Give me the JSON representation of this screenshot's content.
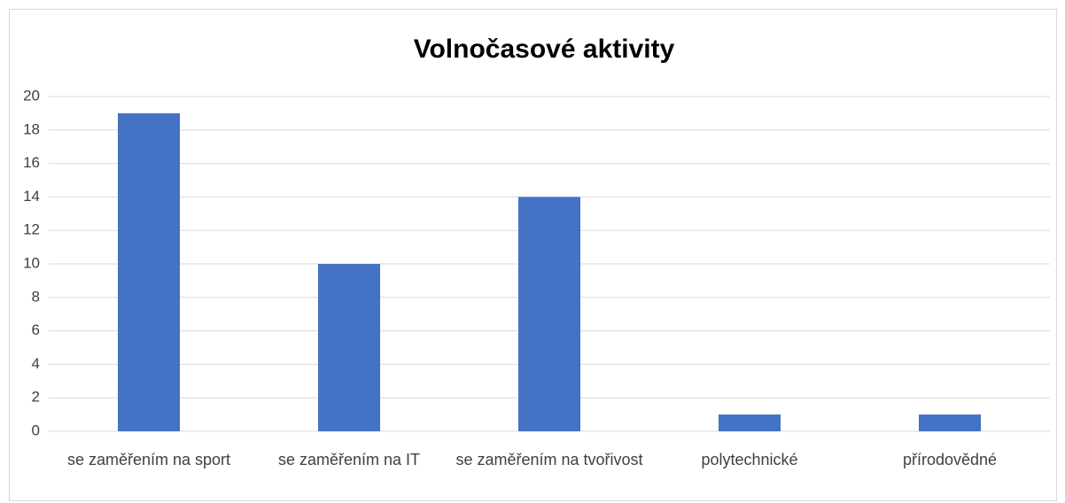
{
  "chart_data": {
    "type": "bar",
    "title": "Volnočasové aktivity",
    "categories": [
      "se zaměřením na sport",
      "se zaměřením na IT",
      "se zaměřením na tvořivost",
      "polytechnické",
      "přírodovědné"
    ],
    "values": [
      19,
      10,
      14,
      1,
      1
    ],
    "color": "#4472c4",
    "ylim": [
      0,
      20
    ],
    "yticks": [
      0,
      2,
      4,
      6,
      8,
      10,
      12,
      14,
      16,
      18,
      20
    ],
    "grid": true
  }
}
